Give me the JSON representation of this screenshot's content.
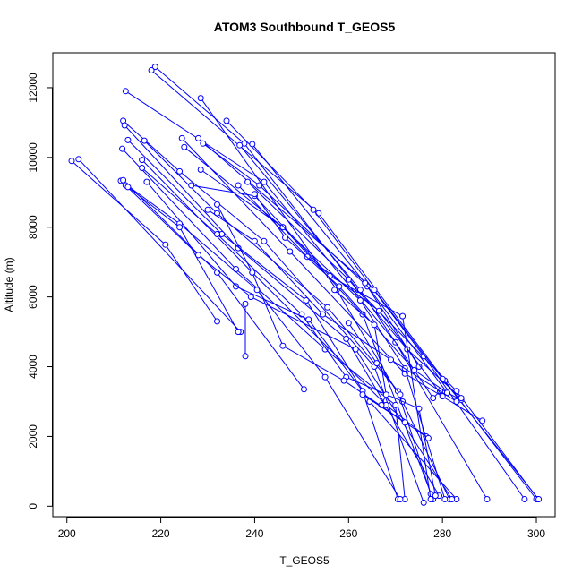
{
  "chart_data": {
    "type": "scatter",
    "title": "ATOM3 Southbound T_GEOS5",
    "xlabel": "T_GEOS5",
    "ylabel": "Altitude (m)",
    "xlim": [
      197,
      304
    ],
    "ylim": [
      -300,
      13000
    ],
    "x_ticks": [
      200,
      220,
      240,
      260,
      280,
      300
    ],
    "y_ticks": [
      0,
      2000,
      4000,
      6000,
      8000,
      10000,
      12000
    ],
    "grid": false,
    "color": "#0000ff",
    "series": [
      {
        "points": [
          [
            218.8,
            12600
          ],
          [
            237.8,
            10400
          ],
          [
            262,
            6200
          ],
          [
            283,
            3300
          ],
          [
            300.4,
            200
          ]
        ]
      },
      {
        "points": [
          [
            218,
            12500
          ],
          [
            253.6,
            8400
          ],
          [
            280.5,
            3600
          ],
          [
            300,
            200
          ]
        ]
      },
      {
        "points": [
          [
            212.5,
            11900
          ],
          [
            242,
            9300
          ],
          [
            270,
            4700
          ],
          [
            289.5,
            200
          ]
        ]
      },
      {
        "points": [
          [
            228.5,
            11700
          ],
          [
            257.5,
            6200
          ],
          [
            271.5,
            3000
          ],
          [
            281.5,
            200
          ]
        ]
      },
      {
        "points": [
          [
            234,
            11050
          ],
          [
            252.5,
            8500
          ],
          [
            276,
            4300
          ],
          [
            297.5,
            200
          ]
        ]
      },
      {
        "points": [
          [
            212,
            11050
          ],
          [
            224,
            9600
          ],
          [
            242,
            7600
          ],
          [
            265.5,
            4000
          ],
          [
            276,
            100
          ]
        ]
      },
      {
        "points": [
          [
            212.3,
            10920
          ],
          [
            236.5,
            7400
          ],
          [
            259.5,
            4800
          ],
          [
            279.3,
            300
          ]
        ]
      },
      {
        "points": [
          [
            224.5,
            10550
          ],
          [
            247.5,
            7300
          ],
          [
            272,
            3800
          ],
          [
            288.5,
            2450
          ]
        ]
      },
      {
        "points": [
          [
            228,
            10550
          ],
          [
            265.5,
            6200
          ],
          [
            280,
            3650
          ],
          [
            300.5,
            200
          ]
        ]
      },
      {
        "points": [
          [
            229,
            10400
          ],
          [
            241,
            9200
          ],
          [
            264,
            6300
          ],
          [
            275,
            4000
          ]
        ]
      },
      {
        "points": [
          [
            239.5,
            10380
          ],
          [
            263.5,
            6400
          ],
          [
            281,
            3250
          ],
          [
            284,
            3050
          ]
        ]
      },
      {
        "points": [
          [
            225,
            10300
          ],
          [
            246,
            8000
          ],
          [
            263,
            5500
          ],
          [
            278,
            200
          ]
        ]
      },
      {
        "points": [
          [
            236.8,
            10350
          ],
          [
            262.5,
            6200
          ],
          [
            278,
            3100
          ],
          [
            279.5,
            3300
          ]
        ]
      },
      {
        "points": [
          [
            213,
            10500
          ],
          [
            233,
            7800
          ],
          [
            251,
            5900
          ],
          [
            264.5,
            3000
          ],
          [
            283,
            200
          ]
        ]
      },
      {
        "points": [
          [
            216.5,
            10480
          ],
          [
            232,
            8400
          ],
          [
            255.5,
            5700
          ],
          [
            270.5,
            3300
          ],
          [
            277.5,
            350
          ]
        ]
      },
      {
        "points": [
          [
            211.8,
            10250
          ],
          [
            236,
            6800
          ],
          [
            255,
            4500
          ],
          [
            270,
            2900
          ],
          [
            272,
            200
          ]
        ]
      },
      {
        "points": [
          [
            216,
            9930
          ],
          [
            239.5,
            6700
          ],
          [
            268,
            2900
          ],
          [
            276.5,
            2000
          ]
        ]
      },
      {
        "points": [
          [
            201,
            9900
          ],
          [
            221,
            7500
          ],
          [
            232,
            5300
          ]
        ]
      },
      {
        "points": [
          [
            202.5,
            9950
          ],
          [
            237,
            5000
          ]
        ]
      },
      {
        "points": [
          [
            228.5,
            9650
          ],
          [
            246,
            8000
          ],
          [
            262.5,
            5900
          ],
          [
            272,
            3950
          ],
          [
            280.5,
            200
          ]
        ]
      },
      {
        "points": [
          [
            216,
            9700
          ],
          [
            232,
            7800
          ],
          [
            250,
            5500
          ],
          [
            259.5,
            3700
          ],
          [
            275,
            2800
          ],
          [
            278.5,
            300
          ]
        ]
      },
      {
        "points": [
          [
            238.5,
            9300
          ],
          [
            260,
            6500
          ],
          [
            272.5,
            4500
          ],
          [
            284,
            3100
          ]
        ]
      },
      {
        "points": [
          [
            236.5,
            9200
          ],
          [
            251.2,
            7150
          ],
          [
            266.5,
            5600
          ],
          [
            280,
            3150
          ]
        ]
      },
      {
        "points": [
          [
            217,
            9300
          ],
          [
            236,
            6300
          ],
          [
            251.5,
            5350
          ],
          [
            263,
            3300
          ],
          [
            270.5,
            200
          ]
        ]
      },
      {
        "points": [
          [
            226.5,
            9200
          ],
          [
            240,
            8900
          ],
          [
            256,
            6600
          ],
          [
            271.5,
            5450
          ],
          [
            277.5,
            200
          ]
        ]
      },
      {
        "points": [
          [
            211.5,
            9330
          ],
          [
            224,
            8100
          ],
          [
            240.5,
            6200
          ],
          [
            255,
            3700
          ],
          [
            271,
            200
          ]
        ]
      },
      {
        "points": [
          [
            212,
            9350
          ],
          [
            232,
            6700
          ],
          [
            250.5,
            3350
          ]
        ]
      },
      {
        "points": [
          [
            212.5,
            9200
          ],
          [
            228,
            7200
          ],
          [
            239.2,
            6000
          ],
          [
            261.5,
            4500
          ],
          [
            282,
            200
          ]
        ]
      },
      {
        "points": [
          [
            240,
            8950
          ],
          [
            246.5,
            7700
          ],
          [
            258,
            6300
          ],
          [
            274,
            3900
          ],
          [
            281,
            3250
          ]
        ]
      },
      {
        "points": [
          [
            232,
            8650
          ],
          [
            239.5,
            6700
          ],
          [
            246,
            4600
          ],
          [
            259,
            3600
          ],
          [
            277,
            1950
          ]
        ]
      },
      {
        "points": [
          [
            213,
            9150
          ],
          [
            224,
            8000
          ],
          [
            236.5,
            5000
          ]
        ]
      },
      {
        "points": [
          [
            230,
            8500
          ],
          [
            240,
            7600
          ],
          [
            254.5,
            5500
          ],
          [
            269,
            4200
          ],
          [
            283,
            3000
          ]
        ]
      },
      {
        "points": [
          [
            238,
            5800
          ],
          [
            238,
            4300
          ]
        ]
      },
      {
        "points": [
          [
            257,
            6200
          ],
          [
            265.5,
            5200
          ],
          [
            268,
            3200
          ],
          [
            267,
            2900
          ]
        ]
      },
      {
        "points": [
          [
            263,
            3200
          ],
          [
            272,
            2400
          ]
        ]
      },
      {
        "points": [
          [
            260,
            5250
          ],
          [
            266,
            4100
          ],
          [
            271,
            3200
          ]
        ]
      }
    ]
  }
}
